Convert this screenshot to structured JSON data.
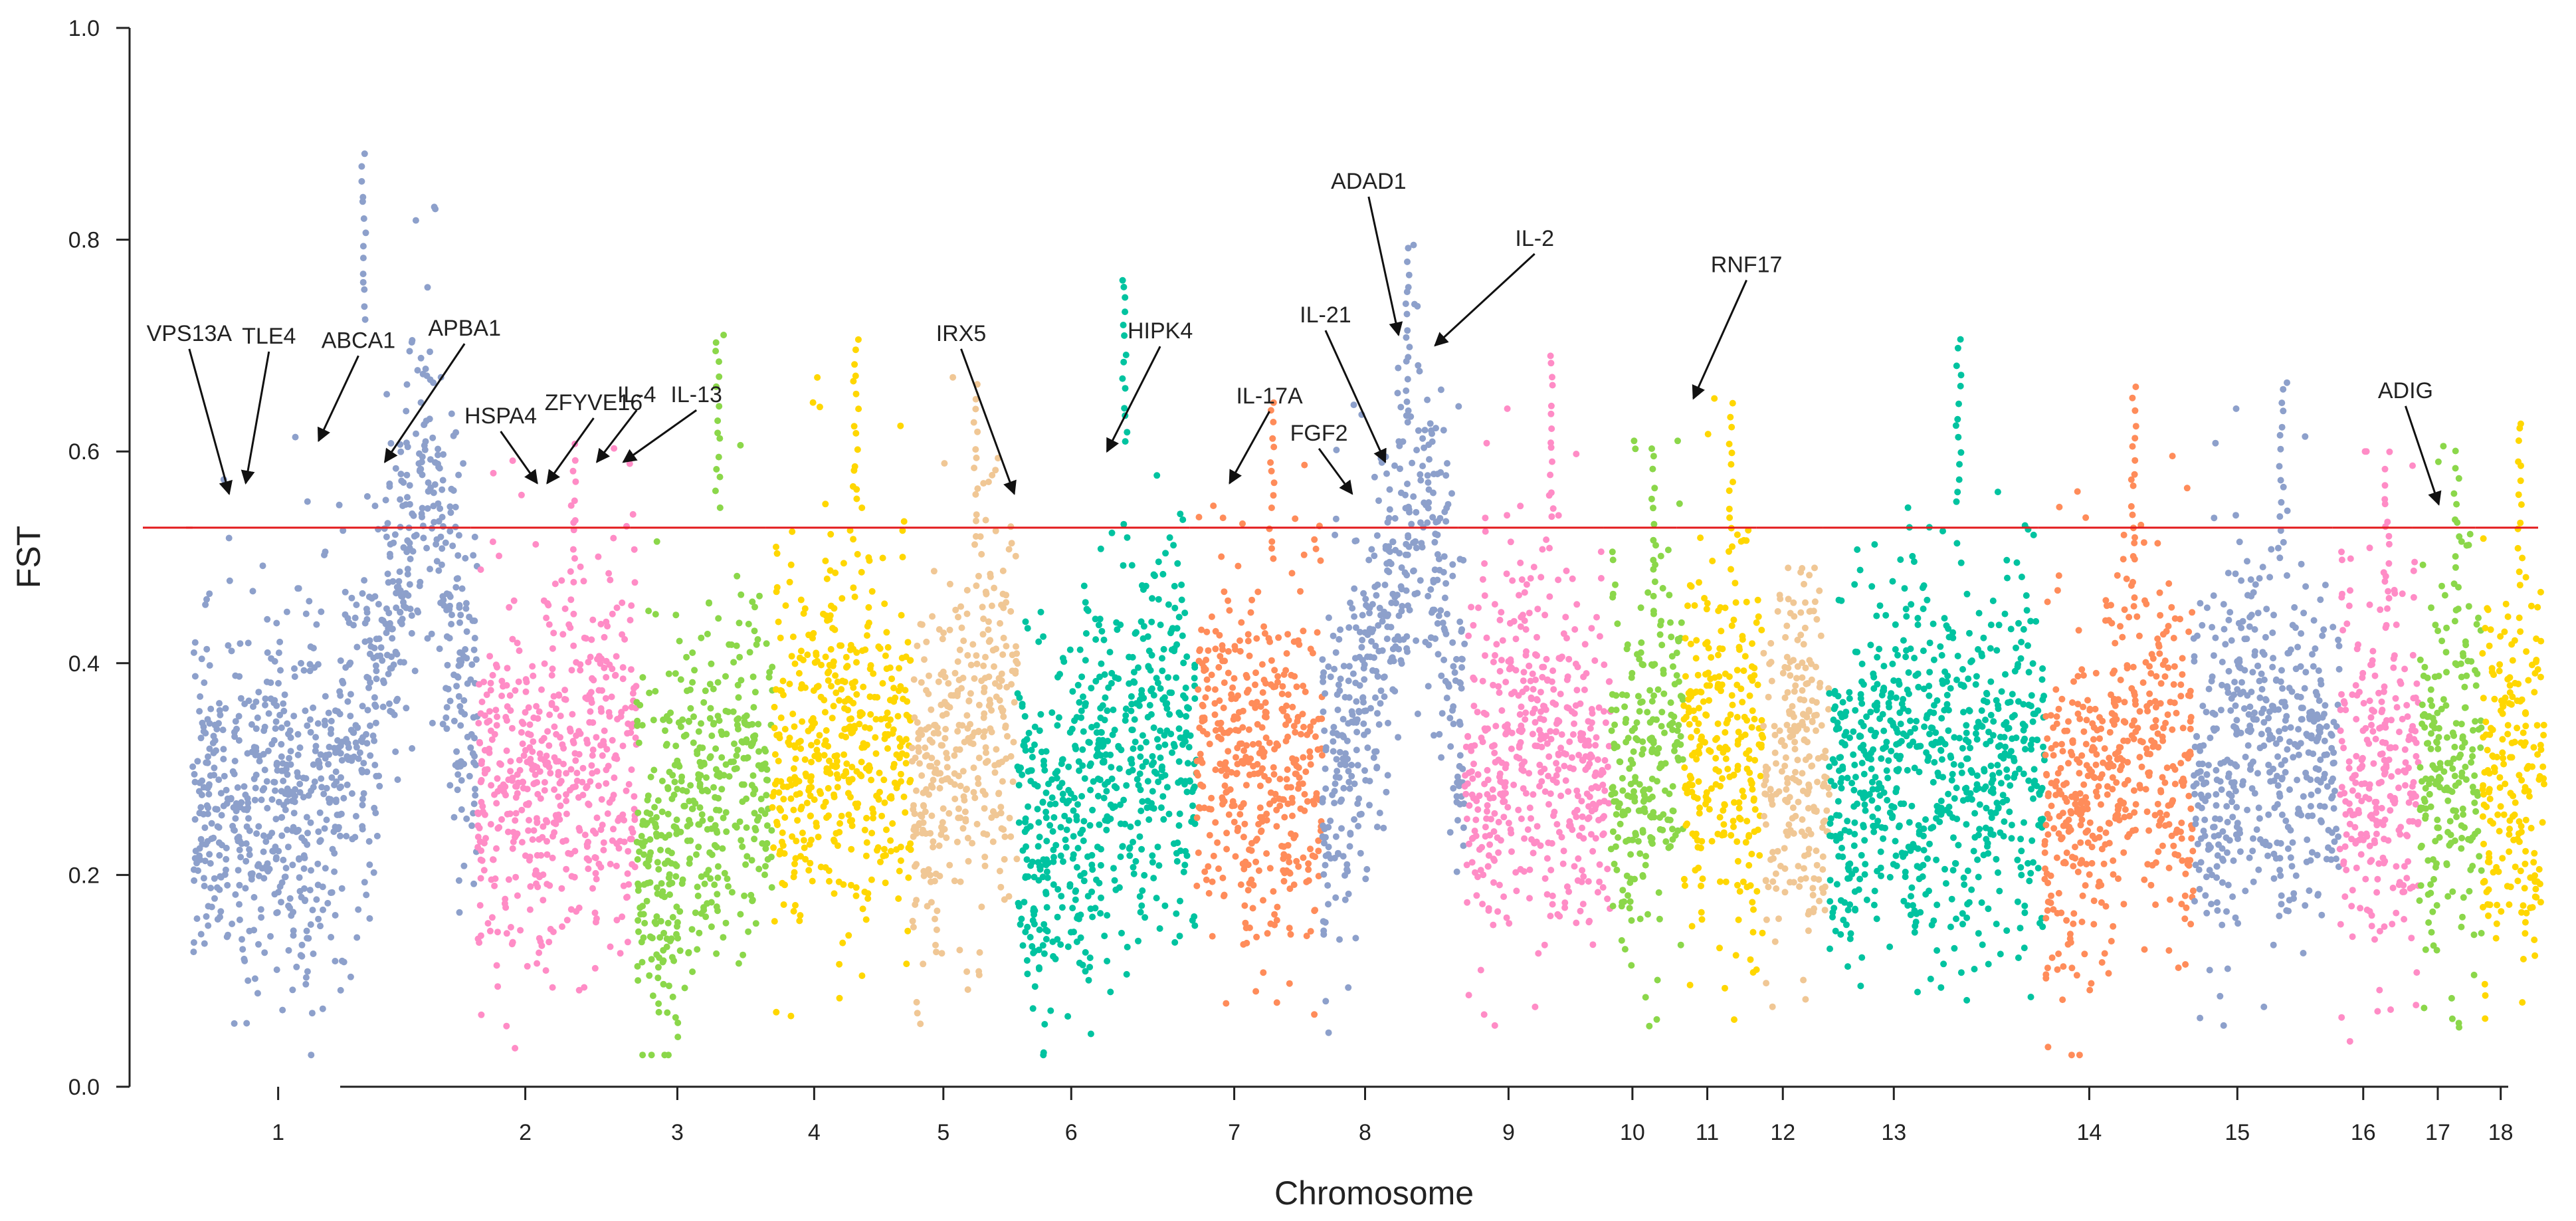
{
  "chart_data": {
    "type": "scatter",
    "title": "",
    "xlabel": "Chromosome",
    "ylabel": "FST",
    "ylim": [
      0,
      1.0
    ],
    "yticks": [
      "0.0",
      "0.2",
      "0.4",
      "0.6",
      "0.8",
      "1.0"
    ],
    "threshold": 0.528,
    "threshold_color": "#e31a1c",
    "chromosomes": [
      {
        "label": "1",
        "start": 0,
        "end": 430,
        "color": "#8da0cb",
        "base": [
          0.24,
          0.26,
          0.24,
          0.27,
          0.26,
          0.28,
          0.3,
          0.36,
          0.5,
          0.6,
          0.42,
          0.32
        ],
        "peak": 0.885
      },
      {
        "label": "2",
        "start": 430,
        "end": 670,
        "color": "#ff8cc6",
        "base": [
          0.25,
          0.27,
          0.28,
          0.3,
          0.29,
          0.3,
          0.31
        ],
        "peak": 0.61
      },
      {
        "label": "3",
        "start": 670,
        "end": 875,
        "color": "#8bd74a",
        "base": [
          0.22,
          0.2,
          0.22,
          0.25,
          0.28,
          0.3,
          0.3
        ],
        "peak": 0.71
      },
      {
        "label": "4",
        "start": 875,
        "end": 1085,
        "color": "#ffd700",
        "base": [
          0.26,
          0.3,
          0.32,
          0.32,
          0.3,
          0.3,
          0.3
        ],
        "peak": 0.715
      },
      {
        "label": "5",
        "start": 1085,
        "end": 1245,
        "color": "#f0c795",
        "base": [
          0.26,
          0.28,
          0.3,
          0.34,
          0.36,
          0.35
        ],
        "peak": 0.67
      },
      {
        "label": "6",
        "start": 1245,
        "end": 1515,
        "color": "#00c3a0",
        "base": [
          0.24,
          0.22,
          0.24,
          0.28,
          0.3,
          0.32,
          0.34,
          0.3
        ],
        "peak": 0.77
      },
      {
        "label": "7",
        "start": 1515,
        "end": 1705,
        "color": "#ff8c5a",
        "base": [
          0.3,
          0.32,
          0.3,
          0.28,
          0.28,
          0.3
        ],
        "peak": 0.655
      },
      {
        "label": "8",
        "start": 1705,
        "end": 1920,
        "color": "#8da0cb",
        "base": [
          0.26,
          0.3,
          0.38,
          0.46,
          0.55,
          0.48,
          0.32
        ],
        "peak": 0.795
      },
      {
        "label": "9",
        "start": 1920,
        "end": 2140,
        "color": "#ff8cc6",
        "base": [
          0.28,
          0.3,
          0.32,
          0.3,
          0.28,
          0.28
        ],
        "peak": 0.7
      },
      {
        "label": "10",
        "start": 2140,
        "end": 2250,
        "color": "#8bd74a",
        "base": [
          0.26,
          0.28,
          0.3,
          0.32
        ],
        "peak": 0.61
      },
      {
        "label": "11",
        "start": 2250,
        "end": 2370,
        "color": "#ffd700",
        "base": [
          0.3,
          0.32,
          0.3,
          0.28
        ],
        "peak": 0.65
      },
      {
        "label": "12",
        "start": 2370,
        "end": 2470,
        "color": "#f0c795",
        "base": [
          0.28,
          0.3,
          0.3,
          0.28
        ],
        "peak": 0.49
      },
      {
        "label": "13",
        "start": 2470,
        "end": 2795,
        "color": "#00c3a0",
        "base": [
          0.24,
          0.28,
          0.3,
          0.32,
          0.3,
          0.28,
          0.3,
          0.32,
          0.3
        ],
        "peak": 0.71
      },
      {
        "label": "14",
        "start": 2795,
        "end": 3020,
        "color": "#ff8c5a",
        "base": [
          0.22,
          0.24,
          0.28,
          0.34,
          0.3,
          0.28
        ],
        "peak": 0.665
      },
      {
        "label": "15",
        "start": 3020,
        "end": 3240,
        "color": "#8da0cb",
        "base": [
          0.28,
          0.3,
          0.32,
          0.3,
          0.3,
          0.32
        ],
        "peak": 0.665
      },
      {
        "label": "16",
        "start": 3240,
        "end": 3360,
        "color": "#ff8cc6",
        "base": [
          0.26,
          0.28,
          0.27,
          0.26
        ],
        "peak": 0.6
      },
      {
        "label": "17",
        "start": 3360,
        "end": 3455,
        "color": "#8bd74a",
        "base": [
          0.28,
          0.3,
          0.28
        ],
        "peak": 0.605
      },
      {
        "label": "18",
        "start": 3455,
        "end": 3550,
        "color": "#ffd700",
        "base": [
          0.28,
          0.3,
          0.29
        ],
        "peak": 0.635
      }
    ],
    "annotations": [
      {
        "label": "VPS13A",
        "chrom": "1",
        "pos": 55,
        "y": 0.56,
        "color": "#8da0cb"
      },
      {
        "label": "TLE4",
        "chrom": "1",
        "pos": 80,
        "y": 0.57,
        "color": "#8da0cb"
      },
      {
        "label": "ABCA1",
        "chrom": "1",
        "pos": 190,
        "y": 0.61,
        "color": "#8da0cb"
      },
      {
        "label": "APBA1",
        "chrom": "1",
        "pos": 290,
        "y": 0.59,
        "color": "#8da0cb"
      },
      {
        "label": "HSPA4",
        "chrom": "2",
        "pos": 520,
        "y": 0.57,
        "color": "#ff8cc6"
      },
      {
        "label": "ZFYVE16",
        "chrom": "2",
        "pos": 535,
        "y": 0.57,
        "color": "#ff8cc6"
      },
      {
        "label": "IL-4",
        "chrom": "2",
        "pos": 610,
        "y": 0.59,
        "color": "#ff8cc6"
      },
      {
        "label": "IL-13",
        "chrom": "2",
        "pos": 650,
        "y": 0.59,
        "color": "#ff8cc6"
      },
      {
        "label": "IRX5",
        "chrom": "5",
        "pos": 1240,
        "y": 0.56,
        "color": "#00c3a0"
      },
      {
        "label": "HIPK4",
        "chrom": "6",
        "pos": 1380,
        "y": 0.6,
        "color": "#00c3a0"
      },
      {
        "label": "IL-17A",
        "chrom": "7",
        "pos": 1565,
        "y": 0.57,
        "color": "#ff8c5a"
      },
      {
        "label": "FGF2",
        "chrom": "8",
        "pos": 1750,
        "y": 0.56,
        "color": "#8da0cb"
      },
      {
        "label": "IL-21",
        "chrom": "8",
        "pos": 1800,
        "y": 0.59,
        "color": "#8da0cb"
      },
      {
        "label": "ADAD1",
        "chrom": "8",
        "pos": 1820,
        "y": 0.71,
        "color": "#8da0cb"
      },
      {
        "label": "IL-2",
        "chrom": "8",
        "pos": 1875,
        "y": 0.7,
        "color": "#8da0cb"
      },
      {
        "label": "RNF17",
        "chrom": "11",
        "pos": 2265,
        "y": 0.65,
        "color": "#ffd700"
      },
      {
        "label": "ADIG",
        "chrom": "17",
        "pos": 3390,
        "y": 0.55,
        "color": "#8bd74a"
      }
    ]
  }
}
